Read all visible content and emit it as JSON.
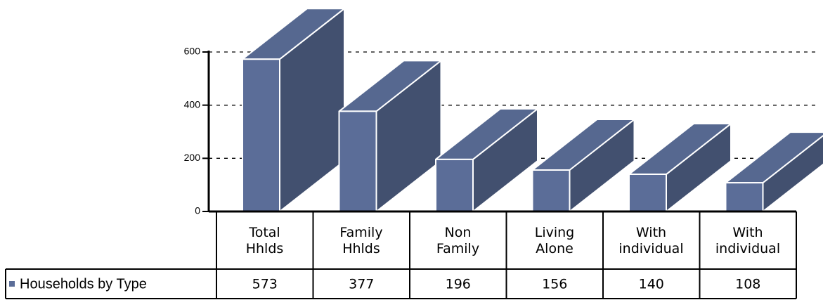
{
  "chart_data": {
    "type": "bar3d",
    "categories": [
      "Total Hhlds",
      "Family Hhlds",
      "Non Family",
      "Living Alone",
      "With individual",
      "With individual"
    ],
    "series": [
      {
        "name": "Households by Type",
        "color": "#5b6d98",
        "values": [
          573,
          377,
          196,
          156,
          140,
          108
        ]
      }
    ],
    "ylim": [
      0,
      600
    ],
    "yticks": [
      0,
      200,
      400,
      600
    ],
    "grid": true
  }
}
